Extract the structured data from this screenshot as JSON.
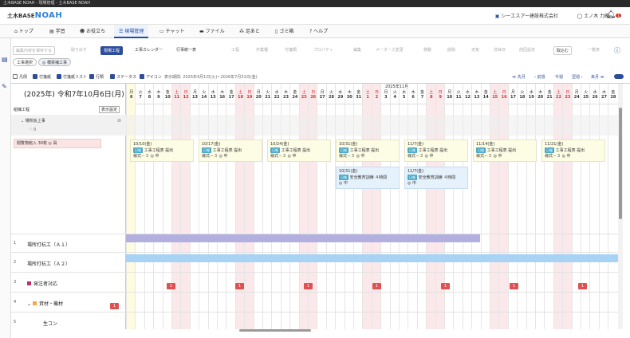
{
  "window": {
    "title": "土木BASE NOAH - 現場管理 - 土木BASE NOAH"
  },
  "header": {
    "brand": "土木BASE",
    "brand_strong": "NOAH",
    "company": "シーエスアー建設株式会社",
    "user": "土ノ木 力蔵",
    "bell_count": "1"
  },
  "nav": [
    {
      "label": "トップ"
    },
    {
      "label": "学習"
    },
    {
      "label": "お役立ち"
    },
    {
      "label": "現場管理"
    },
    {
      "label": "チャット"
    },
    {
      "label": "ファイル"
    },
    {
      "label": "足あと"
    },
    {
      "label": "ゴミ箱"
    },
    {
      "label": "ヘルプ"
    }
  ],
  "toolbar": {
    "save": "編集内容を保存する",
    "back": "取り戻す",
    "schedule": "現場工程",
    "calendar": "工事カレンダー",
    "list": "行事統一表",
    "items": [
      "工程",
      "作業種",
      "付箋類",
      "プロパティ",
      "編集",
      "メーターズ変更",
      "移動",
      "削除",
      "天気",
      "非休日",
      "前回設定",
      "取込む",
      "一覧表"
    ]
  },
  "chips": {
    "a": "工事選択",
    "b": "◎ 橋梁補工事"
  },
  "filters": [
    "凡例",
    "付箋紙",
    "付箋紙リスト",
    "行類",
    "ステータス",
    "アイコン"
  ],
  "range": "表示期間: 2025年4月1日(火)~2026年7月31日(金)",
  "pager": [
    "≪ 先月",
    "‹ 前週",
    "今週",
    "翌週 ›",
    "来月 ≫"
  ],
  "left": {
    "section": "組織工程",
    "display_button": "表示設定",
    "group": "場所仮上事",
    "likes": "0",
    "event": "閲覧物館入 30枚 ◎ 員",
    "date_title": "(2025年) 令和7年10月6日(月)"
  },
  "month_label": "2025年11月",
  "days": [
    {
      "w": "月",
      "d": "6"
    },
    {
      "w": "火",
      "d": "7"
    },
    {
      "w": "水",
      "d": "8"
    },
    {
      "w": "木",
      "d": "9"
    },
    {
      "w": "金",
      "d": "10"
    },
    {
      "w": "土",
      "d": "11"
    },
    {
      "w": "日",
      "d": "12"
    },
    {
      "w": "月",
      "d": "13"
    },
    {
      "w": "火",
      "d": "14"
    },
    {
      "w": "水",
      "d": "15"
    },
    {
      "w": "木",
      "d": "16"
    },
    {
      "w": "金",
      "d": "17"
    },
    {
      "w": "土",
      "d": "18"
    },
    {
      "w": "日",
      "d": "19"
    },
    {
      "w": "月",
      "d": "20"
    },
    {
      "w": "火",
      "d": "21"
    },
    {
      "w": "水",
      "d": "22"
    },
    {
      "w": "木",
      "d": "23"
    },
    {
      "w": "金",
      "d": "24"
    },
    {
      "w": "土",
      "d": "25"
    },
    {
      "w": "日",
      "d": "26"
    },
    {
      "w": "月",
      "d": "27"
    },
    {
      "w": "火",
      "d": "28"
    },
    {
      "w": "水",
      "d": "29"
    },
    {
      "w": "木",
      "d": "30"
    },
    {
      "w": "金",
      "d": "31"
    },
    {
      "w": "土",
      "d": "1"
    },
    {
      "w": "日",
      "d": "2"
    },
    {
      "w": "月",
      "d": "3"
    },
    {
      "w": "火",
      "d": "4"
    },
    {
      "w": "水",
      "d": "5"
    },
    {
      "w": "木",
      "d": "6"
    },
    {
      "w": "金",
      "d": "7"
    },
    {
      "w": "土",
      "d": "8"
    },
    {
      "w": "日",
      "d": "9"
    },
    {
      "w": "月",
      "d": "10"
    },
    {
      "w": "火",
      "d": "11"
    },
    {
      "w": "水",
      "d": "12"
    },
    {
      "w": "木",
      "d": "13"
    },
    {
      "w": "金",
      "d": "14"
    },
    {
      "w": "土",
      "d": "15"
    },
    {
      "w": "日",
      "d": "16"
    },
    {
      "w": "月",
      "d": "17"
    },
    {
      "w": "火",
      "d": "18"
    },
    {
      "w": "水",
      "d": "19"
    },
    {
      "w": "木",
      "d": "20"
    },
    {
      "w": "金",
      "d": "21"
    },
    {
      "w": "土",
      "d": "22"
    },
    {
      "w": "日",
      "d": "23"
    },
    {
      "w": "月",
      "d": "24"
    },
    {
      "w": "火",
      "d": "25"
    },
    {
      "w": "水",
      "d": "26"
    },
    {
      "w": "木",
      "d": "27"
    },
    {
      "w": "金",
      "d": "28"
    }
  ],
  "cards": [
    {
      "date": "10/10(金)",
      "tag": "日報",
      "line1": "工事工程表 提出",
      "line2": "様式－３ ◎ 中"
    },
    {
      "date": "10/17(金)",
      "tag": "日報",
      "line1": "工事工程表 提出",
      "line2": "様式－３ ◎ 中"
    },
    {
      "date": "10/24(金)",
      "tag": "日報",
      "line1": "工事工程表 提出",
      "line2": "様式－３ ◎ 中"
    },
    {
      "date": "10/31(金)",
      "tag": "日報",
      "line1": "工事工程表 提出",
      "line2": "様式－３ ◎ 中"
    },
    {
      "date": "11/7(金)",
      "tag": "日報",
      "line1": "工事工程表 提出",
      "line2": "様式－３ ◎ 中"
    },
    {
      "date": "11/14(金)",
      "tag": "日報",
      "line1": "工事工程表 提出",
      "line2": "様式－３ ◎ 中"
    },
    {
      "date": "11/21(金)",
      "tag": "日報",
      "line1": "工事工程表 提出",
      "line2": "様式－３ ◎ 中"
    }
  ],
  "cards2": [
    {
      "date": "10/31(金)",
      "tag": "日報",
      "line1": "安全教育訓練 ４時間",
      "line2": "◎ 中"
    },
    {
      "date": "11/7(金)",
      "tag": "日報",
      "line1": "安全教育訓練 ４時間",
      "line2": "◎ 中"
    }
  ],
  "rows": [
    {
      "n": "1",
      "name": "場所打杭工（Ａ１）"
    },
    {
      "n": "2",
      "name": "場所打杭工（Ａ２）"
    },
    {
      "n": "3",
      "name": "発注者対応"
    },
    {
      "n": "4",
      "name": "資材・機材"
    },
    {
      "n": "5",
      "name": "生コン"
    }
  ],
  "marker_value": "1",
  "colors": {
    "accent": "#2d4d9a",
    "bar1": "#b3b0e0",
    "bar2": "#a9d3f5",
    "marker": "#e05050",
    "weekend": "#fbe8ea"
  }
}
